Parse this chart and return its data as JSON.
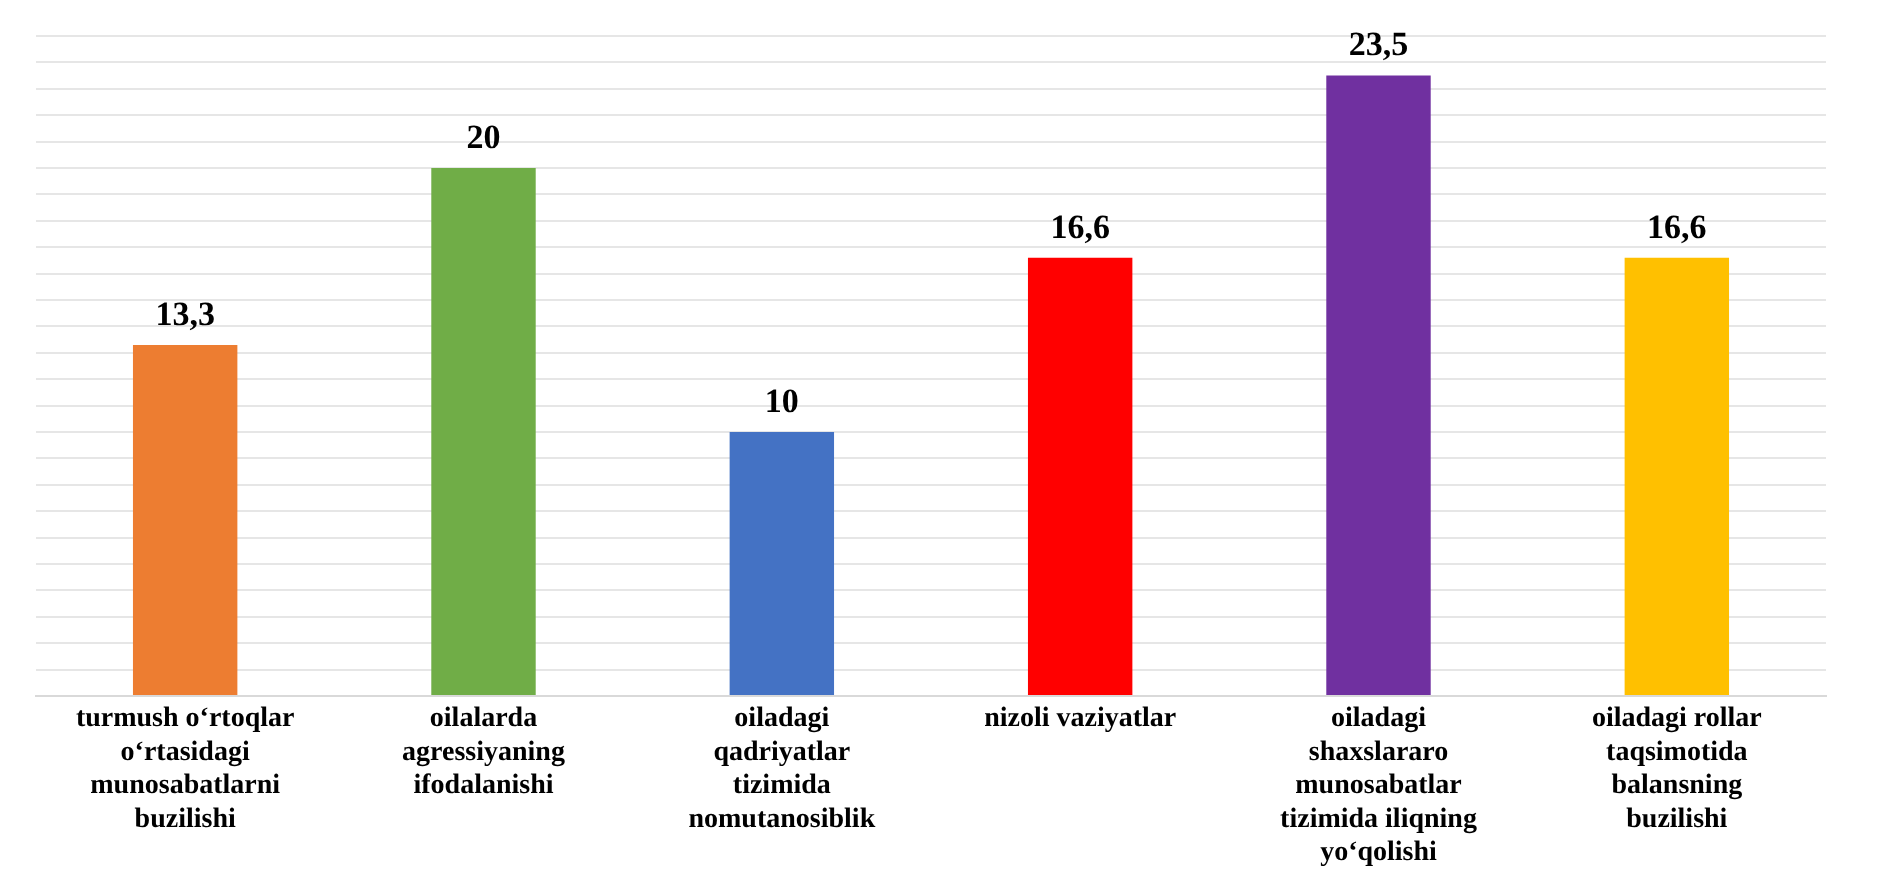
{
  "chart_data": {
    "type": "bar",
    "categories": [
      "turmush o‘rtoqlar o‘rtasidagi munosabatlarni buzilishi",
      "oilalarda agressiyaning ifodalanishi",
      "oiladagi qadriyatlar tizimida nomutanosiblik",
      "nizoli vaziyatlar",
      "oiladagi shaxslararo munosabatlar tizimida iliqning yo‘qolishi",
      "oiladagi rollar taqsimotida balansning buzilishi"
    ],
    "values": [
      13.3,
      20,
      10,
      16.6,
      23.5,
      16.6
    ],
    "colors": [
      "#ed7d31",
      "#70ad47",
      "#4472c4",
      "#ff0000",
      "#7030a0",
      "#ffc000"
    ],
    "value_labels": [
      "13,3",
      "20",
      "10",
      "16,6",
      "23,5",
      "16,6"
    ],
    "ylim": [
      0,
      25
    ],
    "yticks": [
      {
        "value": 0,
        "label": null
      },
      {
        "value": 1,
        "label": null
      },
      {
        "value": 2,
        "label": null
      },
      {
        "value": 3,
        "label": null
      },
      {
        "value": 4,
        "label": null
      },
      {
        "value": 5,
        "label": null
      },
      {
        "value": 6,
        "label": null
      },
      {
        "value": 7,
        "label": null
      },
      {
        "value": 8,
        "label": null
      },
      {
        "value": 9,
        "label": null
      },
      {
        "value": 10,
        "label": null
      },
      {
        "value": 11,
        "label": null
      },
      {
        "value": 12,
        "label": null
      },
      {
        "value": 13,
        "label": null
      },
      {
        "value": 14,
        "label": null
      },
      {
        "value": 15,
        "label": null
      },
      {
        "value": 16,
        "label": null
      },
      {
        "value": 17,
        "label": null
      },
      {
        "value": 18,
        "label": null
      },
      {
        "value": 19,
        "label": null
      },
      {
        "value": 20,
        "label": null
      },
      {
        "value": 21,
        "label": null
      },
      {
        "value": 22,
        "label": null
      },
      {
        "value": 23,
        "label": null
      },
      {
        "value": 24,
        "label": null
      },
      {
        "value": 25,
        "label": null
      }
    ],
    "grid": "y",
    "legend": false
  }
}
